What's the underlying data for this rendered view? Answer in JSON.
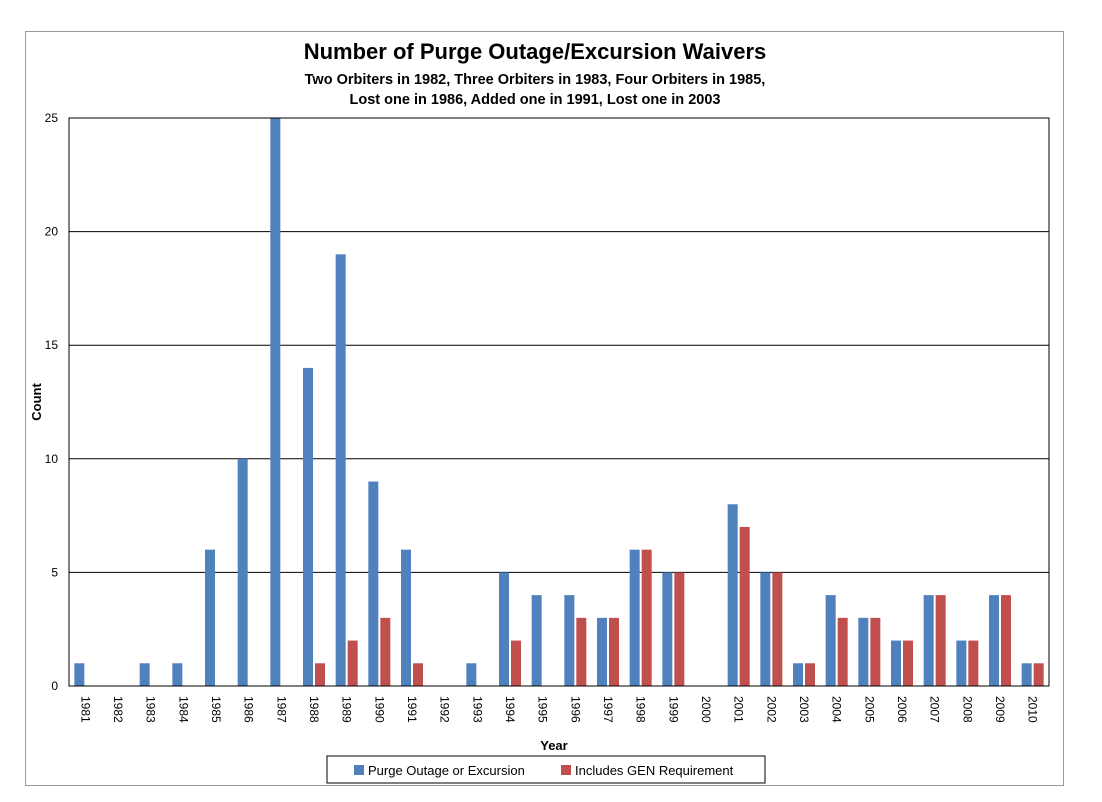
{
  "chart_data": {
    "type": "bar",
    "title": "Number of Purge Outage/Excursion Waivers",
    "subtitle_lines": [
      "Two Orbiters in 1982, Three Orbiters in 1983, Four Orbiters in 1985,",
      "Lost one in 1986, Added one in 1991, Lost one in 2003"
    ],
    "xlabel": "Year",
    "ylabel": "Count",
    "ylim": [
      0,
      25
    ],
    "yticks": [
      0,
      5,
      10,
      15,
      20,
      25
    ],
    "grid": true,
    "legend_position": "bottom",
    "categories": [
      "1981",
      "1982",
      "1983",
      "1984",
      "1985",
      "1986",
      "1987",
      "1988",
      "1989",
      "1990",
      "1991",
      "1992",
      "1993",
      "1994",
      "1995",
      "1996",
      "1997",
      "1998",
      "1999",
      "2000",
      "2001",
      "2002",
      "2003",
      "2004",
      "2005",
      "2006",
      "2007",
      "2008",
      "2009",
      "2010"
    ],
    "series": [
      {
        "name": "Purge Outage or Excursion",
        "color": "#4f81bd",
        "values": [
          1,
          0,
          1,
          1,
          6,
          10,
          25,
          14,
          19,
          9,
          6,
          0,
          1,
          5,
          4,
          4,
          3,
          6,
          5,
          0,
          8,
          5,
          1,
          4,
          3,
          2,
          4,
          2,
          4,
          1
        ]
      },
      {
        "name": "Includes GEN Requirement",
        "color": "#c0504d",
        "values": [
          0,
          0,
          0,
          0,
          0,
          0,
          0,
          1,
          2,
          3,
          1,
          0,
          0,
          2,
          0,
          3,
          3,
          6,
          5,
          0,
          7,
          5,
          1,
          3,
          3,
          2,
          4,
          2,
          4,
          1
        ]
      }
    ]
  }
}
